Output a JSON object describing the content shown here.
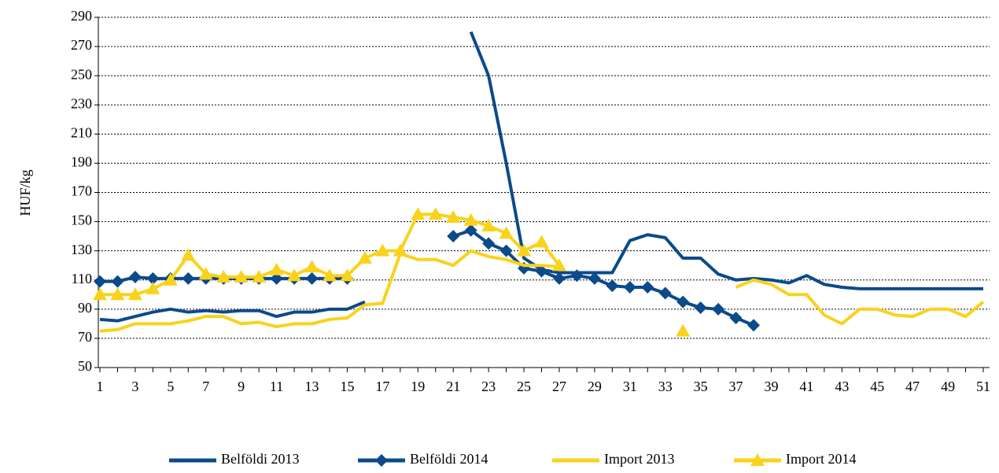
{
  "chart_data": {
    "type": "line",
    "y_label": "HUF/kg",
    "categories": [
      "1",
      null,
      "3",
      null,
      "5",
      null,
      "7",
      null,
      "9",
      null,
      "11",
      null,
      "13",
      null,
      "15",
      null,
      "17",
      null,
      "19",
      null,
      "21",
      null,
      "23",
      null,
      "25",
      null,
      "27",
      null,
      "29",
      null,
      "31",
      null,
      "33",
      null,
      "35",
      null,
      "37",
      null,
      "39",
      null,
      "41",
      null,
      "43",
      null,
      "45",
      null,
      "47",
      null,
      "49",
      null,
      "51"
    ],
    "ylim": [
      50,
      290
    ],
    "yticks": [
      50,
      70,
      90,
      110,
      130,
      150,
      170,
      190,
      210,
      230,
      250,
      270,
      290
    ],
    "grid": true,
    "legend": "bottom",
    "series": [
      {
        "name": "Belföldi 2013",
        "color": "#0b4a8b",
        "marker": "none",
        "values": [
          83,
          82,
          85,
          88,
          90,
          88,
          89,
          88,
          89,
          89,
          85,
          88,
          88,
          90,
          90,
          95,
          null,
          null,
          null,
          null,
          null,
          280,
          250,
          190,
          125,
          117,
          115,
          115,
          115,
          115,
          137,
          141,
          139,
          125,
          125,
          114,
          110,
          111,
          110,
          108,
          113,
          107,
          105,
          104,
          104,
          104,
          104,
          104,
          104,
          104,
          104
        ]
      },
      {
        "name": "Belföldi 2014",
        "color": "#0b4a8b",
        "marker": "diamond",
        "values": [
          109,
          109,
          112,
          111,
          111,
          111,
          111,
          111,
          111,
          111,
          111,
          111,
          111,
          111,
          111,
          null,
          null,
          null,
          null,
          null,
          140,
          144,
          135,
          130,
          118,
          116,
          111,
          113,
          111,
          106,
          105,
          105,
          101,
          95,
          91,
          90,
          84,
          79,
          null,
          null,
          null,
          null,
          null,
          null,
          null,
          null,
          null,
          null,
          null,
          null,
          null
        ]
      },
      {
        "name": "Import 2013",
        "color": "#f9d21c",
        "marker": "none",
        "values": [
          75,
          76,
          80,
          80,
          80,
          82,
          85,
          85,
          80,
          81,
          78,
          80,
          80,
          83,
          84,
          93,
          94,
          128,
          124,
          124,
          120,
          130,
          126,
          124,
          120,
          120,
          119,
          null,
          null,
          null,
          null,
          null,
          null,
          null,
          null,
          null,
          105,
          110,
          107,
          100,
          100,
          86,
          80,
          90,
          90,
          86,
          85,
          90,
          90,
          85,
          95
        ]
      },
      {
        "name": "Import 2014",
        "color": "#f9d21c",
        "marker": "triangle",
        "values": [
          100,
          100,
          100,
          104,
          110,
          127,
          114,
          112,
          112,
          112,
          117,
          113,
          119,
          113,
          113,
          125,
          130,
          130,
          155,
          155,
          153,
          151,
          147,
          142,
          130,
          136,
          120,
          null,
          null,
          null,
          null,
          null,
          null,
          75,
          null,
          null,
          null,
          null,
          null,
          null,
          null,
          null,
          null,
          null,
          null,
          null,
          null,
          null,
          null,
          null,
          null
        ]
      }
    ]
  }
}
